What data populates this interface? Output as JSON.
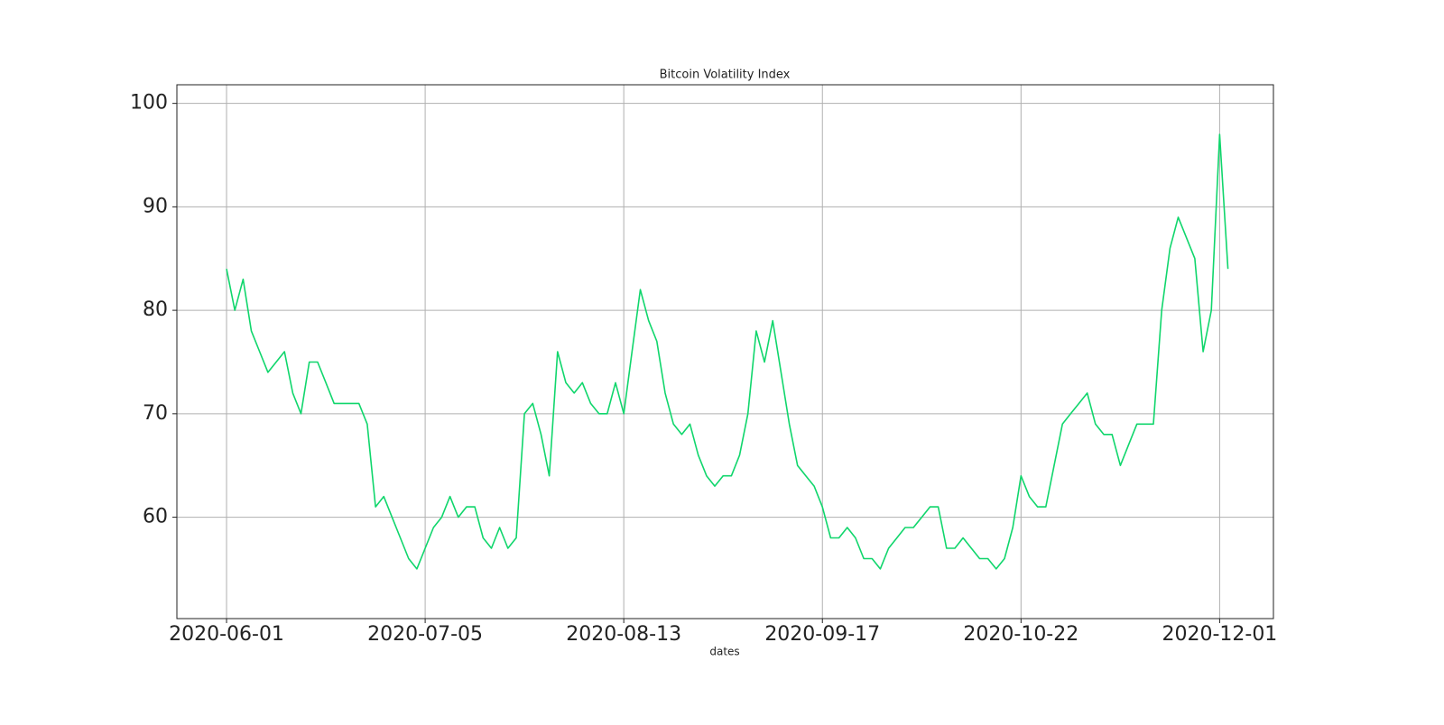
{
  "chart_data": {
    "type": "line",
    "title": "Bitcoin Volatility Index",
    "x_label": "dates",
    "categories": [
      "2020-06-01",
      null,
      null,
      null,
      null,
      null,
      null,
      null,
      null,
      null,
      null,
      null,
      null,
      null,
      null,
      null,
      null,
      null,
      null,
      null,
      null,
      null,
      null,
      null,
      "2020-07-05",
      null,
      null,
      null,
      null,
      null,
      null,
      null,
      null,
      null,
      null,
      null,
      null,
      null,
      null,
      null,
      null,
      null,
      null,
      null,
      null,
      null,
      null,
      null,
      "2020-08-13",
      null,
      null,
      null,
      null,
      null,
      null,
      null,
      null,
      null,
      null,
      null,
      null,
      null,
      null,
      null,
      null,
      null,
      null,
      null,
      null,
      null,
      null,
      null,
      "2020-09-17",
      null,
      null,
      null,
      null,
      null,
      null,
      null,
      null,
      null,
      null,
      null,
      null,
      null,
      null,
      null,
      null,
      null,
      null,
      null,
      null,
      null,
      null,
      null,
      "2020-10-22",
      null,
      null,
      null,
      null,
      null,
      null,
      null,
      null,
      null,
      null,
      null,
      null,
      null,
      null,
      null,
      null,
      null,
      null,
      null,
      null,
      null,
      null,
      null,
      "2020-12-01",
      null
    ],
    "values": [
      84,
      80,
      83,
      78,
      76,
      74,
      75,
      76,
      72,
      70,
      75,
      75,
      73,
      71,
      71,
      71,
      71,
      69,
      61,
      62,
      60,
      58,
      56,
      55,
      57,
      59,
      60,
      62,
      60,
      61,
      61,
      58,
      57,
      59,
      57,
      58,
      70,
      71,
      68,
      64,
      76,
      73,
      72,
      73,
      71,
      70,
      70,
      73,
      70,
      76,
      82,
      79,
      77,
      72,
      69,
      68,
      69,
      66,
      64,
      63,
      64,
      64,
      66,
      70,
      78,
      75,
      79,
      74,
      69,
      65,
      64,
      63,
      61,
      58,
      58,
      59,
      58,
      56,
      56,
      55,
      57,
      58,
      59,
      59,
      60,
      61,
      61,
      57,
      57,
      58,
      57,
      56,
      56,
      55,
      56,
      59,
      64,
      62,
      61,
      61,
      65,
      69,
      70,
      71,
      72,
      69,
      68,
      68,
      65,
      67,
      69,
      69,
      69,
      80,
      86,
      89,
      87,
      85,
      76,
      80,
      97,
      84
    ],
    "color": "#10d66c",
    "xlim": [
      -6,
      126.5
    ],
    "ylim": [
      50.2,
      101.8
    ],
    "yticks": [
      60,
      70,
      80,
      90,
      100
    ],
    "grid": true
  }
}
